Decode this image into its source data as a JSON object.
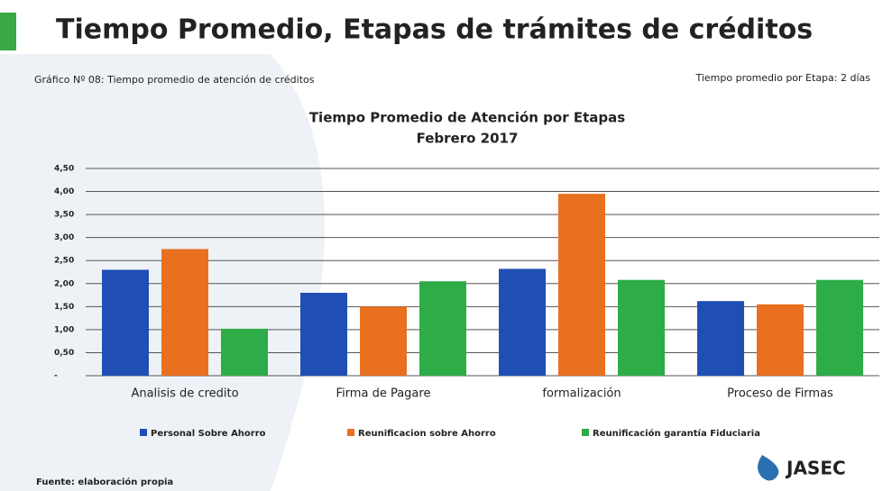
{
  "slide_title": "Tiempo Promedio, Etapas de trámites de créditos",
  "caption": "Gráfico Nº 08: Tiempo promedio de atención de créditos",
  "note": "Tiempo  promedio  por Etapa: 2 días",
  "source": "Fuente: elaboración propia",
  "logo": "JASEC",
  "chart_data": {
    "type": "bar",
    "title": "Tiempo Promedio de Atención por Etapas",
    "subtitle": "Febrero 2017",
    "categories": [
      "Analisis de credito",
      "Firma de Pagare",
      "formalización",
      "Proceso de Firmas"
    ],
    "series": [
      {
        "name": "Personal Sobre Ahorro",
        "color": "#1f4fb5",
        "values": [
          2.3,
          1.8,
          2.32,
          1.62
        ]
      },
      {
        "name": "Reunificacion sobre Ahorro",
        "color": "#e8701f",
        "values": [
          2.75,
          1.5,
          3.95,
          1.55
        ]
      },
      {
        "name": "Reunificación garantía Fiduciaria",
        "color": "#2eac47",
        "values": [
          1.02,
          2.05,
          2.08,
          2.08
        ]
      }
    ],
    "ylim": [
      0,
      4.5
    ],
    "yticks": [
      {
        "value": 0,
        "label": "-"
      },
      {
        "value": 0.5,
        "label": "0,50"
      },
      {
        "value": 1,
        "label": "1,00"
      },
      {
        "value": 1.5,
        "label": "1,50"
      },
      {
        "value": 2,
        "label": "2,00"
      },
      {
        "value": 2.5,
        "label": "2,50"
      },
      {
        "value": 3,
        "label": "3,00"
      },
      {
        "value": 3.5,
        "label": "3,50"
      },
      {
        "value": 4,
        "label": "4,00"
      },
      {
        "value": 4.5,
        "label": "4,50"
      }
    ],
    "grid": true,
    "legend": "bottom"
  }
}
